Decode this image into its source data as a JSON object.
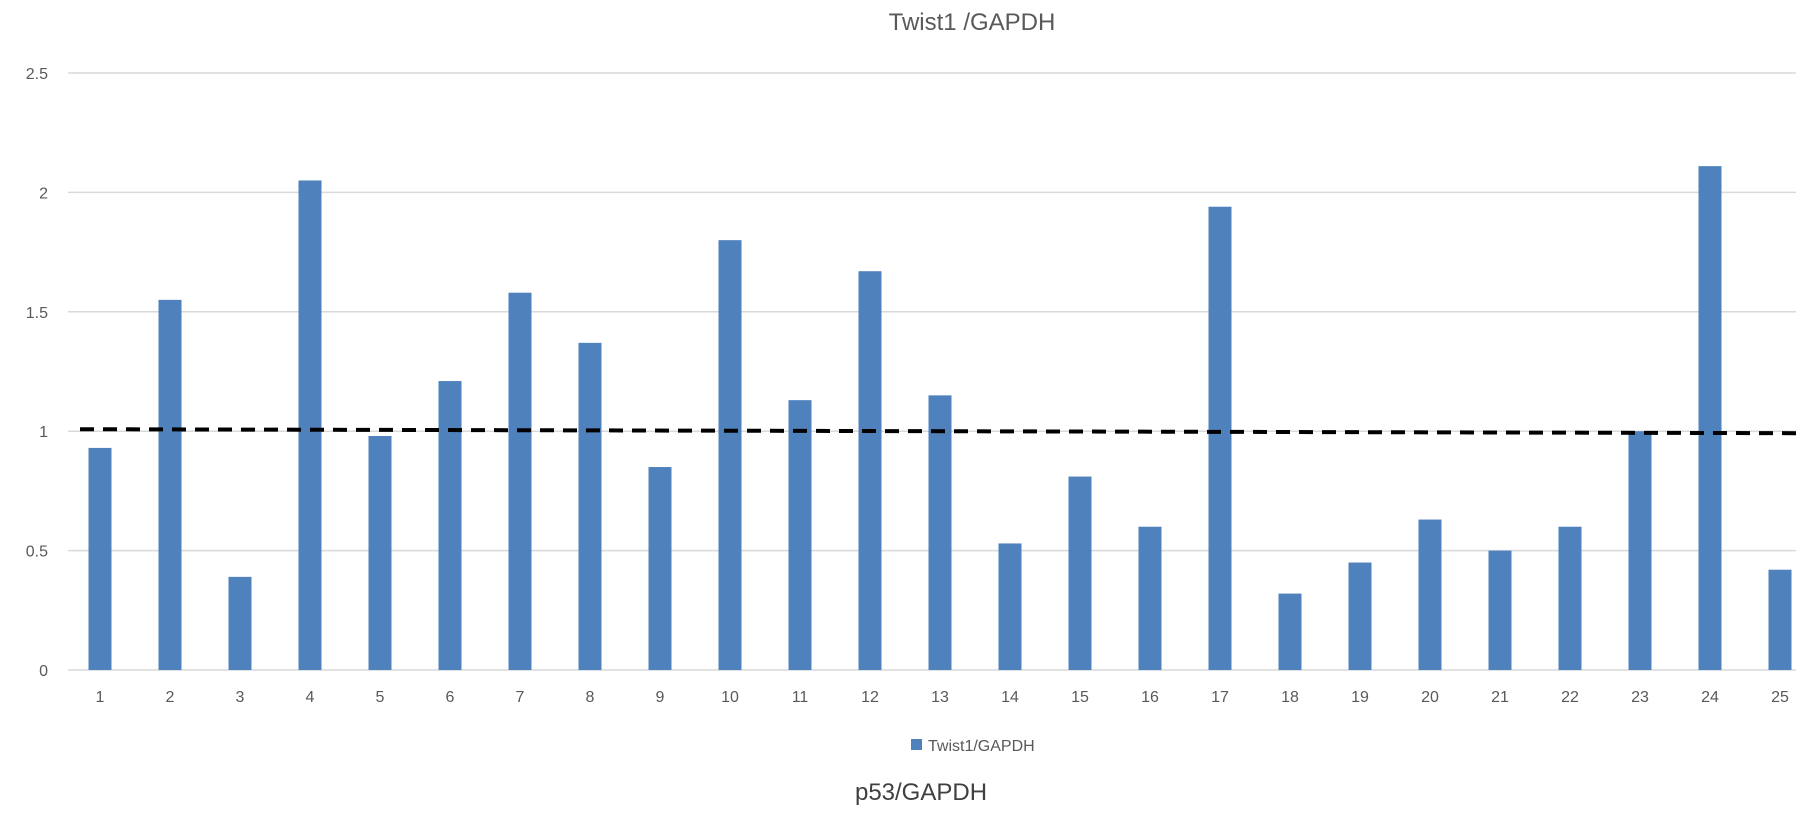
{
  "chart_data": {
    "type": "bar",
    "title": "Twist1 /GAPDH",
    "categories": [
      "1",
      "2",
      "3",
      "4",
      "5",
      "6",
      "7",
      "8",
      "9",
      "10",
      "11",
      "12",
      "13",
      "14",
      "15",
      "16",
      "17",
      "18",
      "19",
      "20",
      "21",
      "22",
      "23",
      "24",
      "25"
    ],
    "series": [
      {
        "name": "Twist1/GAPDH",
        "values": [
          0.93,
          1.55,
          0.39,
          2.05,
          0.98,
          1.21,
          1.58,
          1.37,
          0.85,
          1.8,
          1.13,
          1.67,
          1.15,
          0.53,
          0.81,
          0.6,
          1.94,
          0.32,
          0.45,
          0.63,
          0.5,
          0.6,
          1.0,
          2.11,
          0.42
        ],
        "color": "#4f81bd"
      }
    ],
    "reference_line": {
      "value": 1.0,
      "style": "dashed",
      "color": "#000000"
    },
    "ylim": [
      0,
      2.5
    ],
    "yticks": [
      "0",
      "0.5",
      "1",
      "1.5",
      "2",
      "2.5"
    ],
    "xlabel": "",
    "ylabel": "",
    "grid": true,
    "legend_position": "bottom"
  },
  "footer_text": "p53/GAPDH",
  "colors": {
    "bar": "#4f81bd",
    "gridline": "#d9d9d9",
    "text": "#595959"
  }
}
